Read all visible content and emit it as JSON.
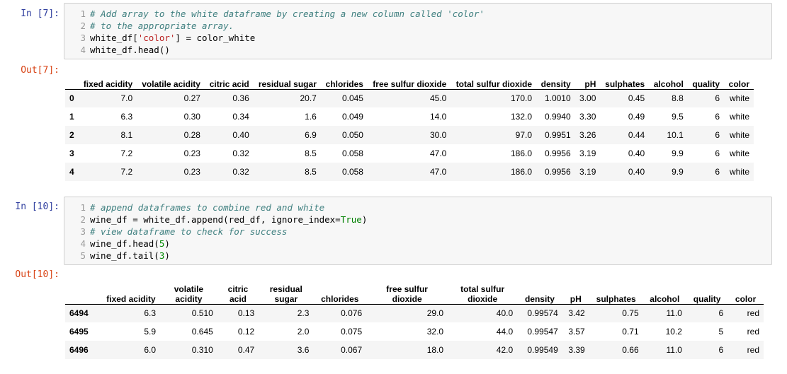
{
  "cells": [
    {
      "in_prompt": "In [7]:",
      "code_lines": [
        {
          "n": "1",
          "parts": [
            {
              "t": "# Add array to the white dataframe by creating a new column called 'color'",
              "k": "comment"
            }
          ]
        },
        {
          "n": "2",
          "parts": [
            {
              "t": "# to the appropriate array.",
              "k": "comment"
            }
          ]
        },
        {
          "n": "3",
          "parts": [
            {
              "t": "white_df[",
              "k": "plain"
            },
            {
              "t": "'color'",
              "k": "string"
            },
            {
              "t": "] = color_white",
              "k": "plain"
            }
          ]
        },
        {
          "n": "4",
          "parts": [
            {
              "t": "white_df.head()",
              "k": "plain"
            }
          ]
        }
      ],
      "out_prompt": "Out[7]:",
      "table": {
        "columns": [
          "",
          "fixed acidity",
          "volatile acidity",
          "citric acid",
          "residual sugar",
          "chlorides",
          "free sulfur dioxide",
          "total sulfur dioxide",
          "density",
          "pH",
          "sulphates",
          "alcohol",
          "quality",
          "color"
        ],
        "rows": [
          [
            "0",
            "7.0",
            "0.27",
            "0.36",
            "20.7",
            "0.045",
            "45.0",
            "170.0",
            "1.0010",
            "3.00",
            "0.45",
            "8.8",
            "6",
            "white"
          ],
          [
            "1",
            "6.3",
            "0.30",
            "0.34",
            "1.6",
            "0.049",
            "14.0",
            "132.0",
            "0.9940",
            "3.30",
            "0.49",
            "9.5",
            "6",
            "white"
          ],
          [
            "2",
            "8.1",
            "0.28",
            "0.40",
            "6.9",
            "0.050",
            "30.0",
            "97.0",
            "0.9951",
            "3.26",
            "0.44",
            "10.1",
            "6",
            "white"
          ],
          [
            "3",
            "7.2",
            "0.23",
            "0.32",
            "8.5",
            "0.058",
            "47.0",
            "186.0",
            "0.9956",
            "3.19",
            "0.40",
            "9.9",
            "6",
            "white"
          ],
          [
            "4",
            "7.2",
            "0.23",
            "0.32",
            "8.5",
            "0.058",
            "47.0",
            "186.0",
            "0.9956",
            "3.19",
            "0.40",
            "9.9",
            "6",
            "white"
          ]
        ]
      }
    },
    {
      "in_prompt": "In [10]:",
      "code_lines": [
        {
          "n": "1",
          "parts": [
            {
              "t": "# append dataframes to combine red and white",
              "k": "comment"
            }
          ]
        },
        {
          "n": "2",
          "parts": [
            {
              "t": "wine_df = white_df.append(red_df, ignore_index=",
              "k": "plain"
            },
            {
              "t": "True",
              "k": "kw"
            },
            {
              "t": ")",
              "k": "plain"
            }
          ]
        },
        {
          "n": "3",
          "parts": [
            {
              "t": "# view dataframe to check for success",
              "k": "comment"
            }
          ]
        },
        {
          "n": "4",
          "parts": [
            {
              "t": "wine_df.head(",
              "k": "plain"
            },
            {
              "t": "5",
              "k": "number"
            },
            {
              "t": ")",
              "k": "plain"
            }
          ]
        },
        {
          "n": "5",
          "parts": [
            {
              "t": "wine_df.tail(",
              "k": "plain"
            },
            {
              "t": "3",
              "k": "number"
            },
            {
              "t": ")",
              "k": "plain"
            }
          ]
        }
      ],
      "out_prompt": "Out[10]:",
      "table": {
        "columns": [
          "",
          "fixed acidity",
          "volatile acidity",
          "citric acid",
          "residual sugar",
          "chlorides",
          "free sulfur dioxide",
          "total sulfur dioxide",
          "density",
          "pH",
          "sulphates",
          "alcohol",
          "quality",
          "color"
        ],
        "rows": [
          [
            "6494",
            "6.3",
            "0.510",
            "0.13",
            "2.3",
            "0.076",
            "29.0",
            "40.0",
            "0.99574",
            "3.42",
            "0.75",
            "11.0",
            "6",
            "red"
          ],
          [
            "6495",
            "5.9",
            "0.645",
            "0.12",
            "2.0",
            "0.075",
            "32.0",
            "44.0",
            "0.99547",
            "3.57",
            "0.71",
            "10.2",
            "5",
            "red"
          ],
          [
            "6496",
            "6.0",
            "0.310",
            "0.47",
            "3.6",
            "0.067",
            "18.0",
            "42.0",
            "0.99549",
            "3.39",
            "0.66",
            "11.0",
            "6",
            "red"
          ]
        ]
      }
    }
  ]
}
